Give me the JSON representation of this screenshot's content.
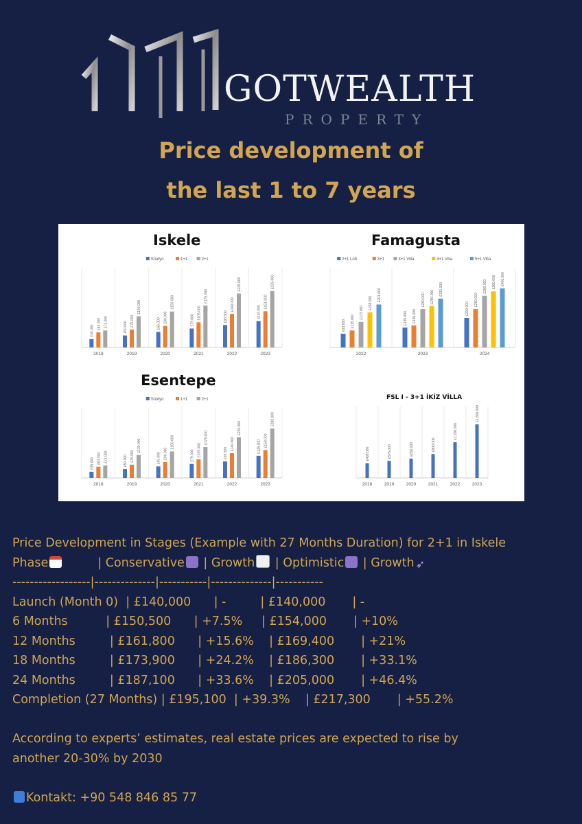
{
  "header": {
    "brand": "GOTWEALTH",
    "brand_sub": "PROPERTY",
    "title_line1": "Price development of",
    "title_line2": "the last 1 to 7 years"
  },
  "colors": {
    "background": "#162044",
    "accent_gold": "#d1a551",
    "series_blue": "#4472c4",
    "series_orange": "#ed7d31",
    "series_gray": "#a5a5a5",
    "series_yellow": "#ffc000",
    "series_lightblue": "#5b9bd5"
  },
  "chart_data": [
    {
      "type": "bar",
      "title": "Iskele",
      "categories": [
        "2018",
        "2019",
        "2020",
        "2021",
        "2022",
        "2023"
      ],
      "series": [
        {
          "name": "Stüdyo",
          "values": [
            35000,
            50000,
            65000,
            79000,
            93500,
            110000
          ],
          "labels": [
            "£35.000",
            "£50.000",
            "£65.000",
            "£79.000",
            "£93.500",
            "£110.000"
          ]
        },
        {
          "name": "1+1",
          "values": [
            63000,
            75000,
            90000,
            105000,
            140000,
            151000
          ],
          "labels": [
            "£63.000",
            "£75.000",
            "£90.000",
            "£105.000",
            "£140.000",
            "£151.000"
          ]
        },
        {
          "name": "2+1",
          "values": [
            71000,
            130000,
            150000,
            175000,
            225000,
            235000
          ],
          "labels": [
            "£71.000",
            "£130.000",
            "£150.000",
            "£175.000",
            "£225.000",
            "£235.000"
          ]
        }
      ],
      "legend": "top"
    },
    {
      "type": "bar",
      "title": "Famagusta",
      "categories": [
        "2022",
        "2023",
        "2024"
      ],
      "series": [
        {
          "name": "2+1 Loft",
          "values": [
            93000,
            135000,
            200000
          ],
          "labels": [
            "£93.000",
            "£135.000",
            "£200.000"
          ]
        },
        {
          "name": "3+1",
          "values": [
            115000,
            149000,
            260000
          ],
          "labels": [
            "£115.000",
            "£149.000",
            "£260.000"
          ]
        },
        {
          "name": "3+1 Villa",
          "values": [
            173000,
            260000,
            350000
          ],
          "labels": [
            "£173.000",
            "£260.000",
            "£350.000"
          ]
        },
        {
          "name": "4+1 Villa",
          "values": [
            238000,
            280000,
            380000
          ],
          "labels": [
            "£238.000",
            "£280.000",
            "£380.000"
          ]
        },
        {
          "name": "5+1 Villa",
          "values": [
            291000,
            331000,
            400000
          ],
          "labels": [
            "£291.000",
            "£331.000",
            "£400.000"
          ]
        }
      ],
      "legend": "top"
    },
    {
      "type": "bar",
      "title": "Esentepe",
      "categories": [
        "2018",
        "2019",
        "2020",
        "2021",
        "2022",
        "2023"
      ],
      "series": [
        {
          "name": "Stüdyo",
          "values": [
            35000,
            50000,
            65000,
            79000,
            93500,
            125000
          ],
          "labels": [
            "£35.000",
            "£50.000",
            "£65.000",
            "£79.000",
            "£93.500",
            "£125.000"
          ]
        },
        {
          "name": "1+1",
          "values": [
            63000,
            75000,
            90000,
            105000,
            140000,
            158000
          ],
          "labels": [
            "£63.000",
            "£75.000",
            "£90.000",
            "£105.000",
            "£140.000",
            "£158.000"
          ]
        },
        {
          "name": "2+1",
          "values": [
            71000,
            130000,
            150000,
            175000,
            230000,
            280000
          ],
          "labels": [
            "£71.000",
            "£130.000",
            "£150.000",
            "£175.000",
            "£230.000",
            "£280.000"
          ]
        }
      ],
      "legend": "top"
    },
    {
      "type": "bar",
      "title": "FSL I - 3+1 İKİZ VİLLA",
      "categories": [
        "2018",
        "2019",
        "2020",
        "2021",
        "2022",
        "2023"
      ],
      "series": [
        {
          "values": [
            495000,
            575000,
            650000,
            800000,
            1200000,
            1800000
          ],
          "labels": [
            "£495.000",
            "£575.000",
            "£650.000",
            "£800.000",
            "£1.200.000",
            "£1.800.000"
          ]
        }
      ]
    }
  ],
  "notes": {
    "heading_line1": "Price Development in Stages (Example with 27 Months Duration) for 2+1 in Iskele",
    "header_row": {
      "phase": "Phase",
      "sep1": "         | Conservative",
      "sep2": " | Growth",
      "sep3": " | Optimistic",
      "sep4": " | Growth"
    },
    "separator": "------------------|--------------|-----------|--------------|-----------",
    "rows": [
      "Launch (Month 0)  | £140,000      | -         | £140,000       | -",
      "6 Months          | £150,500      | +7.5%     | £154,000       | +10%",
      "12 Months         | £161,800      | +15.6%    | £169,400       | +21%",
      "18 Months         | £173,900      | +24.2%    | £186,300       | +33.1%",
      "24 Months         | £187,100      | +33.6%    | £205,000       | +46.4%",
      "Completion (27 Months) | £195,100  | +39.3%    | £217,300       | +55.2%"
    ],
    "forecast_line1": "According to experts’ estimates, real estate prices are expected to rise by",
    "forecast_line2": "another 20-30% by 2030",
    "contact": "Kontakt: +90 548 846 85 77"
  },
  "icons": [
    "building-skyline-icon",
    "calendar-icon",
    "money-icon",
    "bar-chart-icon",
    "rocket-icon",
    "phone-icon"
  ]
}
